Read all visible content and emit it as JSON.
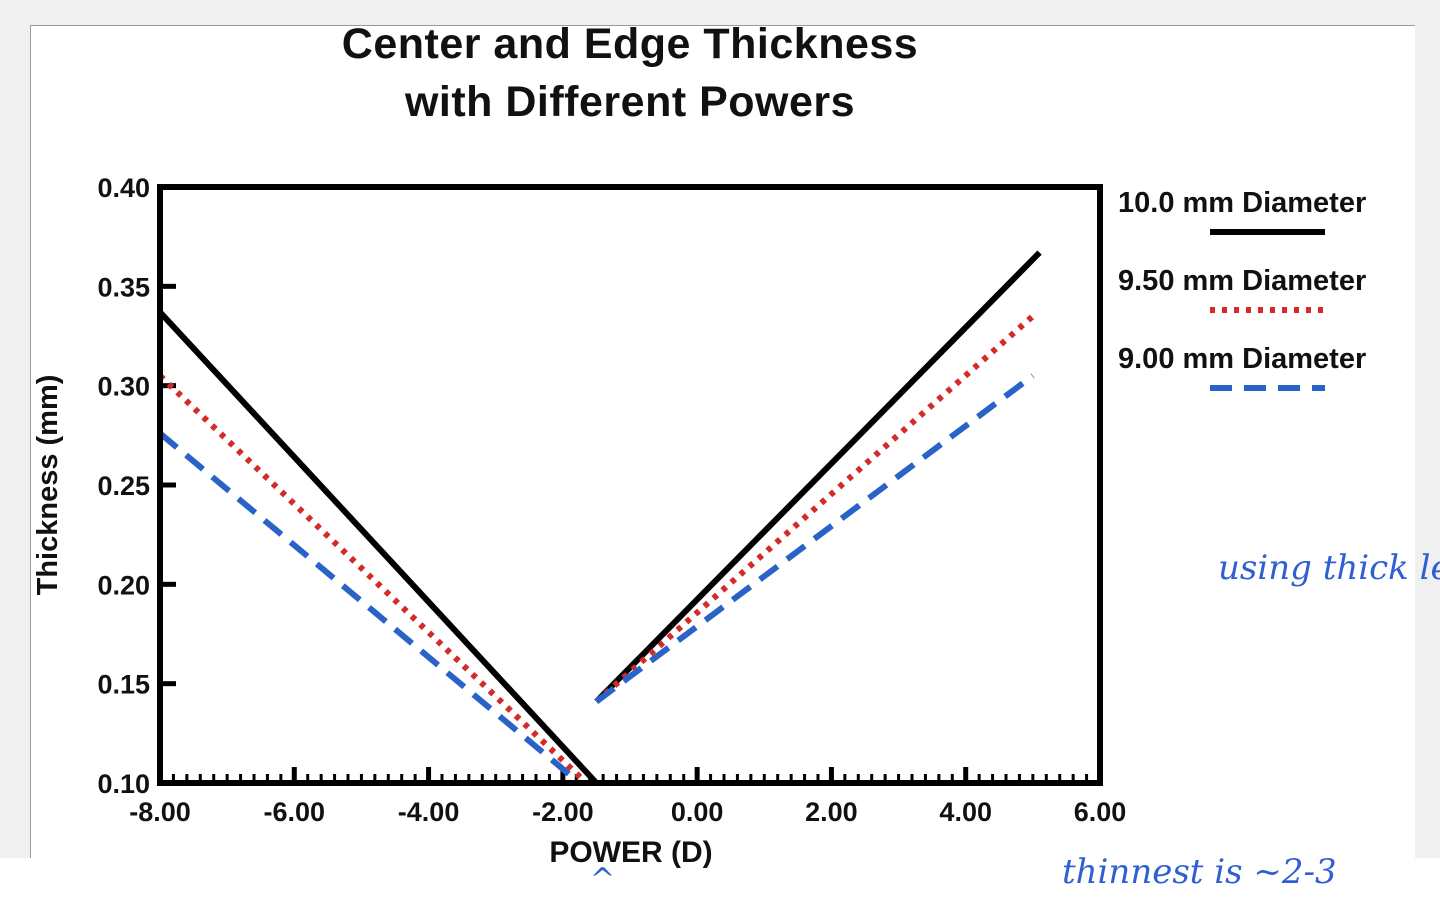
{
  "chart_data": {
    "type": "line",
    "title_lines": [
      "Center and Edge Thickness",
      "with Different Powers"
    ],
    "xlabel": "POWER (D)",
    "ylabel": "Thickness (mm)",
    "xlim": [
      -8,
      6
    ],
    "ylim": [
      0.1,
      0.4
    ],
    "x_ticks": [
      "-8.00",
      "-6.00",
      "-4.00",
      "-2.00",
      "0.00",
      "2.00",
      "4.00",
      "6.00"
    ],
    "y_ticks": [
      "0.10",
      "0.15",
      "0.20",
      "0.25",
      "0.30",
      "0.35",
      "0.40"
    ],
    "legend_position": "right",
    "series": [
      {
        "name": "10.0 mm Diameter",
        "color": "#000000",
        "style": "solid",
        "segments": [
          [
            [
              -8.0,
              0.337
            ],
            [
              -1.5,
              0.1
            ]
          ],
          [
            [
              -1.5,
              0.141
            ],
            [
              5.1,
              0.367
            ]
          ]
        ]
      },
      {
        "name": "9.50 mm Diameter",
        "color": "#d42a2a",
        "style": "dotted",
        "segments": [
          [
            [
              -8.0,
              0.305
            ],
            [
              -1.65,
              0.1
            ]
          ],
          [
            [
              -1.5,
              0.141
            ],
            [
              5.0,
              0.335
            ]
          ]
        ]
      },
      {
        "name": "9.00 mm Diameter",
        "color": "#2a63c8",
        "style": "dashed",
        "segments": [
          [
            [
              -8.0,
              0.276
            ],
            [
              -1.75,
              0.1
            ]
          ],
          [
            [
              -1.5,
              0.141
            ],
            [
              5.0,
              0.305
            ]
          ]
        ]
      }
    ]
  },
  "annotations": {
    "note_right": "using thick lens",
    "note_bottom": "thinnest is ~2-3",
    "note_arrow": "^"
  }
}
